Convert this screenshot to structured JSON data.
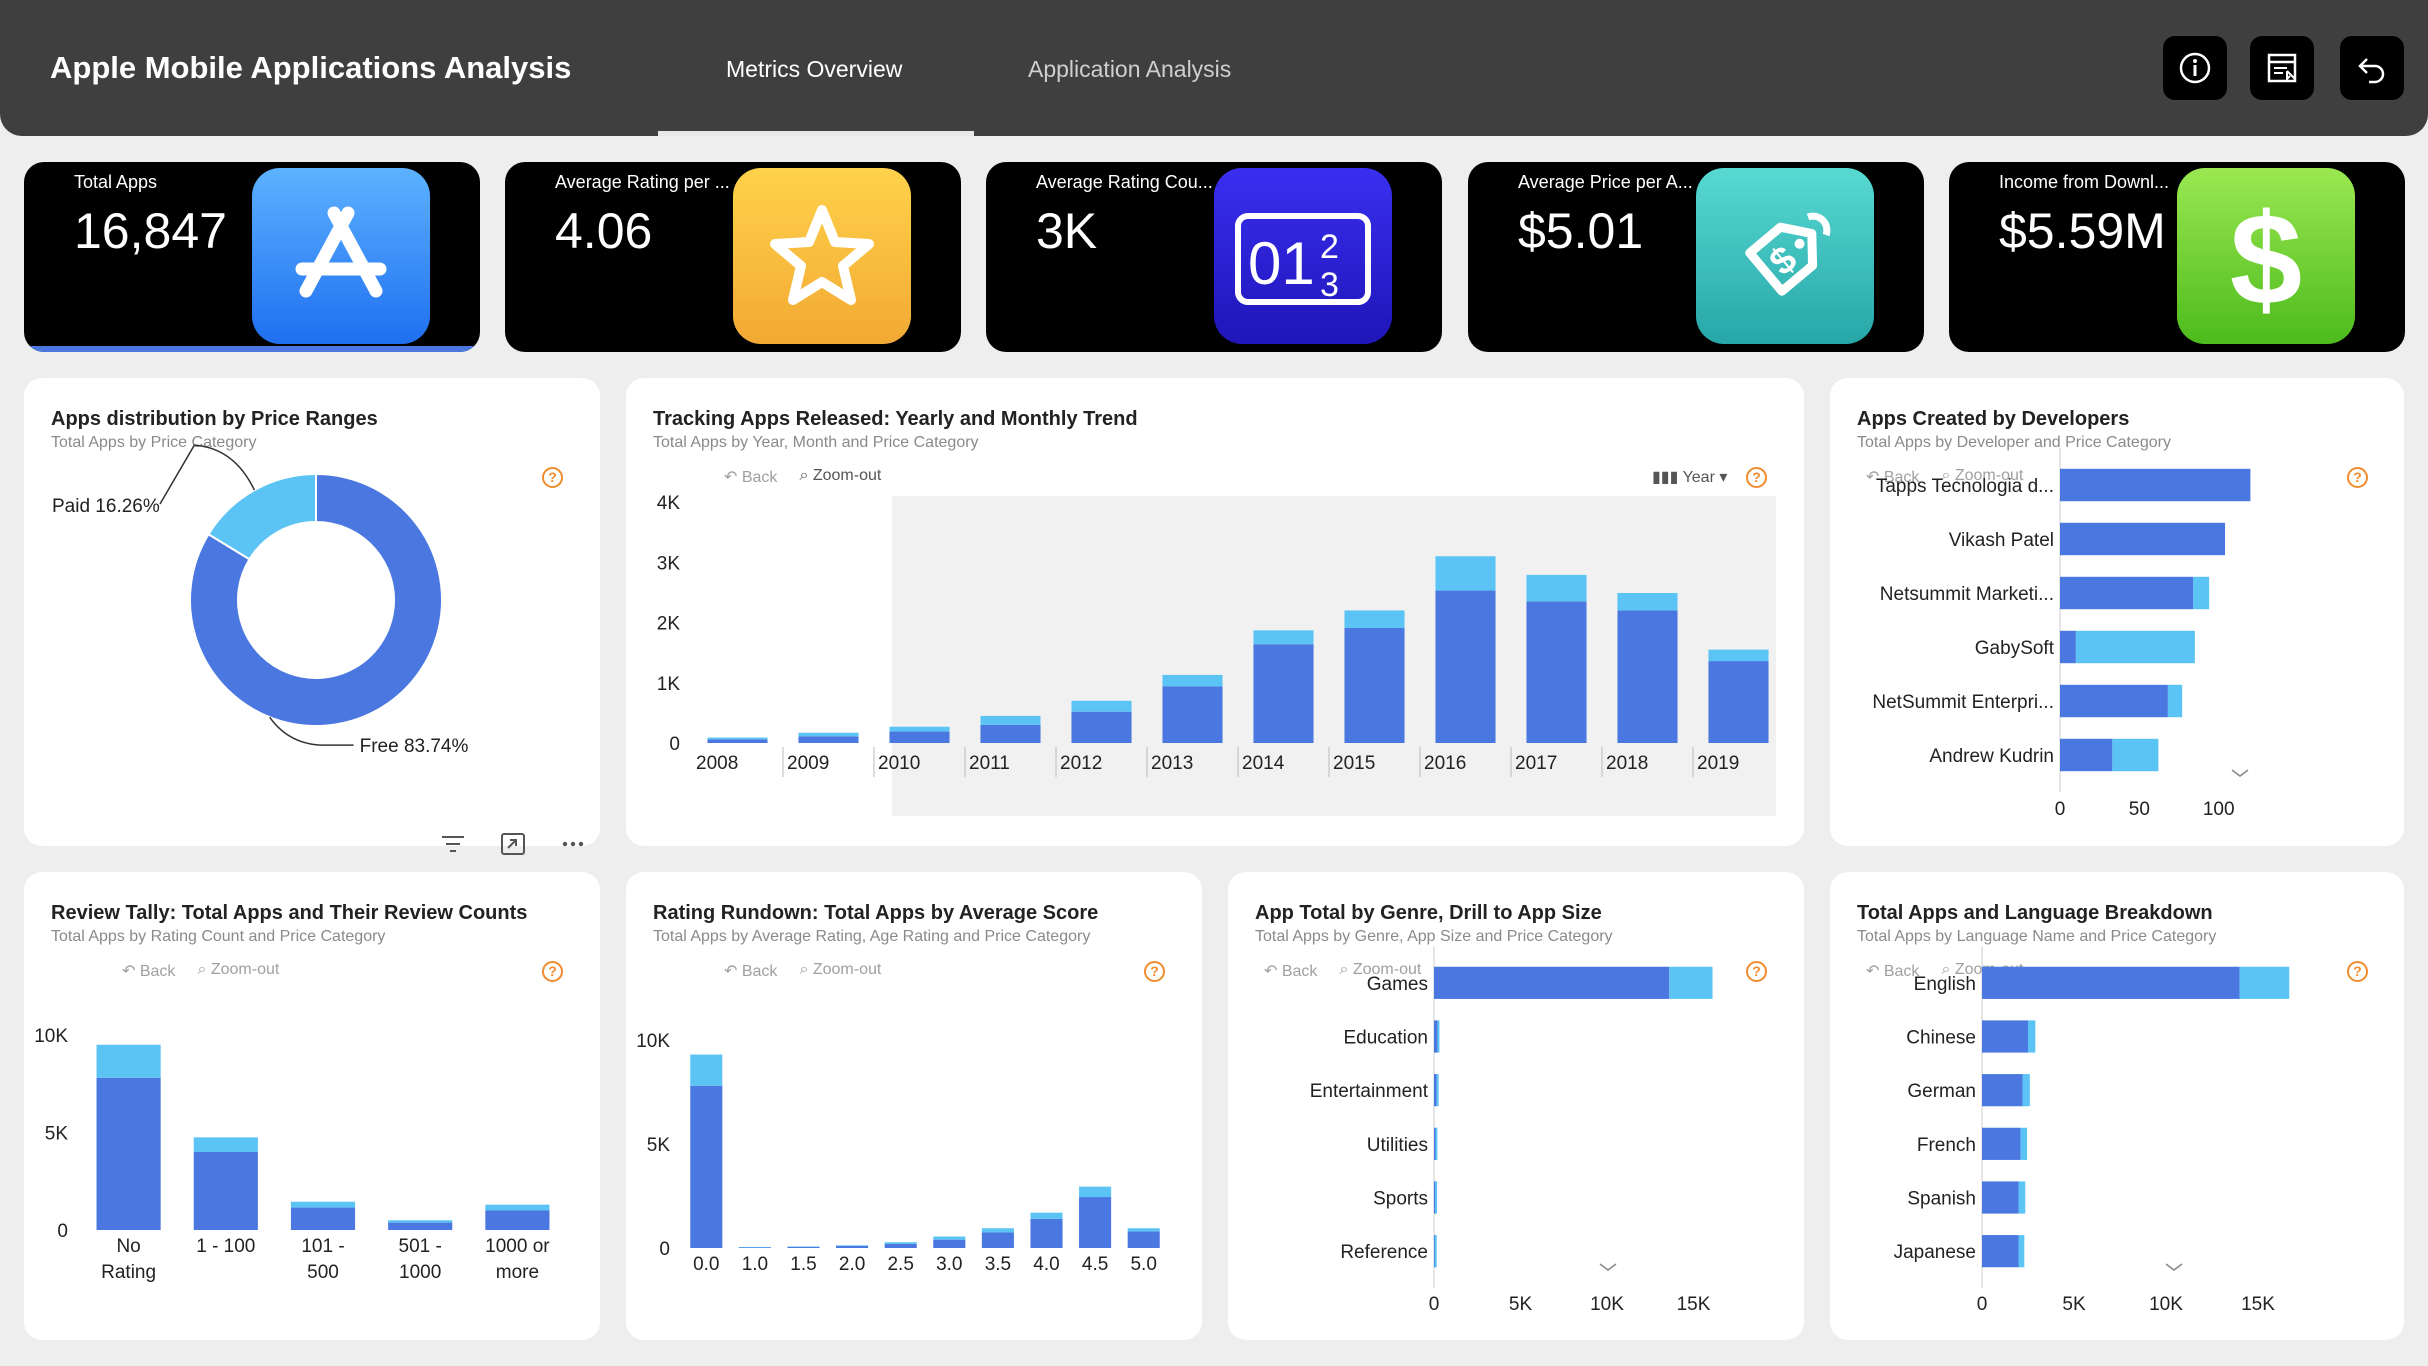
{
  "header": {
    "title": "Apple Mobile Applications Analysis",
    "tabs": [
      {
        "label": "Metrics Overview",
        "active": true
      },
      {
        "label": "Application Analysis",
        "active": false
      }
    ],
    "buttons": [
      "info-icon",
      "report-icon",
      "undo-icon"
    ]
  },
  "kpis": [
    {
      "title": "Total Apps",
      "value": "16,847",
      "icon": "app-store-icon",
      "color": "#2d7ef7"
    },
    {
      "title": "Average Rating per ...",
      "value": "4.06",
      "icon": "star-icon",
      "color": "#f6b92f"
    },
    {
      "title": "Average Rating Cou...",
      "value": "3K",
      "icon": "counter-icon",
      "color": "#2b22d6"
    },
    {
      "title": "Average Price per A...",
      "value": "$5.01",
      "icon": "price-tag-icon",
      "color": "#3cc3c0"
    },
    {
      "title": "Income from Downl...",
      "value": "$5.59M",
      "icon": "dollar-icon",
      "color": "#6cd63a"
    }
  ],
  "colors": {
    "primary": "#4a77e0",
    "secondary": "#5bc4f5",
    "help": "#f08c2e"
  },
  "nav": {
    "back": "Back",
    "zoom_out": "Zoom-out",
    "year": "Year"
  },
  "charts": [
    {
      "id": "price-ranges",
      "title": "Apps distribution by Price Ranges",
      "subtitle": "Total Apps by Price Category",
      "chart_data": {
        "type": "pie",
        "donut": true,
        "slices": [
          {
            "label": "Paid",
            "value": 16.26,
            "display": "Paid 16.26%"
          },
          {
            "label": "Free",
            "value": 83.74,
            "display": "Free 83.74%"
          }
        ]
      }
    },
    {
      "id": "release-trend",
      "title": "Tracking Apps Released: Yearly and Monthly Trend",
      "subtitle": "Total Apps by Year, Month and Price Category",
      "chart_data": {
        "type": "bar",
        "stacked": true,
        "categories": [
          "2008",
          "2009",
          "2010",
          "2011",
          "2012",
          "2013",
          "2014",
          "2015",
          "2016",
          "2017",
          "2018",
          "2019"
        ],
        "series": [
          {
            "values": [
              60,
              110,
              190,
              300,
              520,
              940,
              1640,
              1910,
              2530,
              2350,
              2200,
              1360
            ]
          },
          {
            "values": [
              30,
              60,
              80,
              150,
              180,
              190,
              230,
              290,
              570,
              440,
              290,
              190
            ]
          }
        ],
        "yticks": [
          "0",
          "1K",
          "2K",
          "3K",
          "4K"
        ],
        "ylim": [
          0,
          4000
        ]
      }
    },
    {
      "id": "developers",
      "title": "Apps Created by Developers",
      "subtitle": "Total Apps by Developer and Price Category",
      "chart_data": {
        "type": "bar",
        "horizontal": true,
        "stacked": true,
        "categories": [
          "Tapps Tecnologia d...",
          "Vikash Patel",
          "Netsummit Marketi...",
          "GabySoft",
          "NetSummit Enterpri...",
          "Andrew Kudrin"
        ],
        "series": [
          {
            "values": [
              120,
              104,
              84,
              10,
              68,
              33
            ]
          },
          {
            "values": [
              0,
              0,
              10,
              75,
              9,
              29
            ]
          }
        ],
        "xticks": [
          "0",
          "50",
          "100"
        ],
        "xlim": [
          0,
          150
        ]
      }
    },
    {
      "id": "review-tally",
      "title": "Review Tally: Total Apps and Their Review Counts",
      "subtitle": "Total Apps by Rating Count and Price Category",
      "chart_data": {
        "type": "bar",
        "stacked": true,
        "categories": [
          [
            "No",
            "Rating"
          ],
          [
            "1 - 100"
          ],
          [
            "101 -",
            "500"
          ],
          [
            "501 -",
            "1000"
          ],
          [
            "1000 or",
            "more"
          ]
        ],
        "series": [
          {
            "values": [
              7800,
              4000,
              1150,
              380,
              1000
            ]
          },
          {
            "values": [
              1700,
              750,
              300,
              120,
              300
            ]
          }
        ],
        "yticks": [
          "0",
          "5K",
          "10K"
        ],
        "ylim": [
          0,
          10000
        ]
      }
    },
    {
      "id": "rating-rundown",
      "title": "Rating Rundown: Total Apps by Average Score",
      "subtitle": "Total Apps by Average Rating, Age Rating and Price Category",
      "chart_data": {
        "type": "bar",
        "stacked": true,
        "categories": [
          "0.0",
          "1.0",
          "1.5",
          "2.0",
          "2.5",
          "3.0",
          "3.5",
          "4.0",
          "4.5",
          "5.0"
        ],
        "series": [
          {
            "values": [
              7800,
              40,
              60,
              100,
              200,
              400,
              750,
              1400,
              2450,
              800
            ]
          },
          {
            "values": [
              1500,
              5,
              10,
              30,
              80,
              150,
              200,
              300,
              500,
              150
            ]
          }
        ],
        "yticks": [
          "0",
          "5K",
          "10K"
        ],
        "ylim": [
          0,
          10000
        ]
      }
    },
    {
      "id": "genre",
      "title": "App Total by Genre, Drill to App Size",
      "subtitle": "Total Apps by Genre, App Size and Price Category",
      "chart_data": {
        "type": "bar",
        "horizontal": true,
        "stacked": true,
        "categories": [
          "Games",
          "Education",
          "Entertainment",
          "Utilities",
          "Sports",
          "Reference"
        ],
        "series": [
          {
            "values": [
              13600,
              200,
              150,
              80,
              60,
              40
            ]
          },
          {
            "values": [
              2500,
              30,
              40,
              20,
              20,
              10
            ]
          }
        ],
        "xticks": [
          "0",
          "5K",
          "10K",
          "15K"
        ],
        "xlim": [
          0,
          20000
        ]
      }
    },
    {
      "id": "language",
      "title": "Total Apps and Language Breakdown",
      "subtitle": "Total Apps by Language Name and Price Category",
      "chart_data": {
        "type": "bar",
        "horizontal": true,
        "stacked": true,
        "categories": [
          "English",
          "Chinese",
          "German",
          "French",
          "Spanish",
          "Japanese"
        ],
        "series": [
          {
            "values": [
              14000,
              2500,
              2200,
              2100,
              2000,
              2000
            ]
          },
          {
            "values": [
              2700,
              400,
              400,
              350,
              350,
              300
            ]
          }
        ],
        "xticks": [
          "0",
          "5K",
          "10K",
          "15K"
        ],
        "xlim": [
          0,
          20000
        ]
      }
    }
  ]
}
